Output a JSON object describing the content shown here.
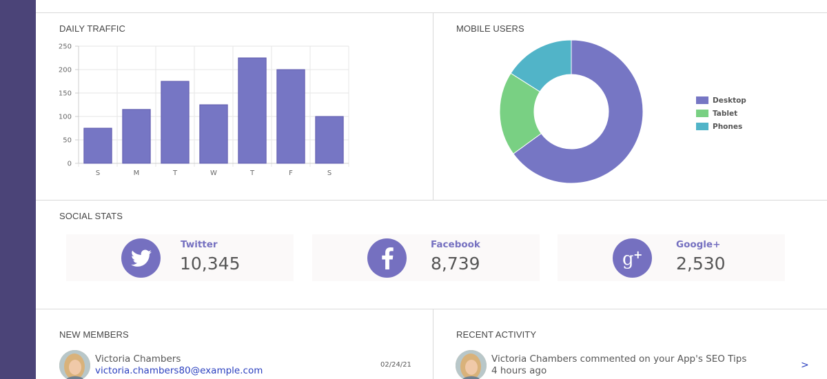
{
  "panels": {
    "daily_traffic_title": "DAILY TRAFFIC",
    "mobile_users_title": "MOBILE USERS",
    "social_stats_title": "SOCIAL STATS",
    "new_members_title": "NEW MEMBERS",
    "recent_activity_title": "RECENT ACTIVITY"
  },
  "chart_data": [
    {
      "type": "bar",
      "title": "DAILY TRAFFIC",
      "categories": [
        "S",
        "M",
        "T",
        "W",
        "T",
        "F",
        "S"
      ],
      "values": [
        75,
        115,
        175,
        125,
        225,
        200,
        100
      ],
      "yticks": [
        0,
        50,
        100,
        150,
        200,
        250
      ],
      "ylim": [
        0,
        250
      ],
      "grid": true,
      "color": "#7676c4"
    },
    {
      "type": "pie",
      "title": "MOBILE USERS",
      "donut": true,
      "labels": [
        "Desktop",
        "Tablet",
        "Phones"
      ],
      "values": [
        65,
        19,
        16
      ],
      "colors": [
        "#7676c4",
        "#79d083",
        "#51b4c8"
      ],
      "legend": "right"
    }
  ],
  "social": [
    {
      "name": "Twitter",
      "count": "10,345",
      "icon": "twitter-bird-icon"
    },
    {
      "name": "Facebook",
      "count": "8,739",
      "icon": "facebook-f-icon"
    },
    {
      "name": "Google+",
      "count": "2,530",
      "icon": "google-plus-icon"
    }
  ],
  "new_members": [
    {
      "name": "Victoria Chambers",
      "email": "victoria.chambers80@example.com",
      "date": "02/24/21"
    }
  ],
  "recent_activity": [
    {
      "text": "Victoria Chambers commented on your App's SEO Tips",
      "time": "4 hours ago",
      "chevron": ">"
    }
  ]
}
